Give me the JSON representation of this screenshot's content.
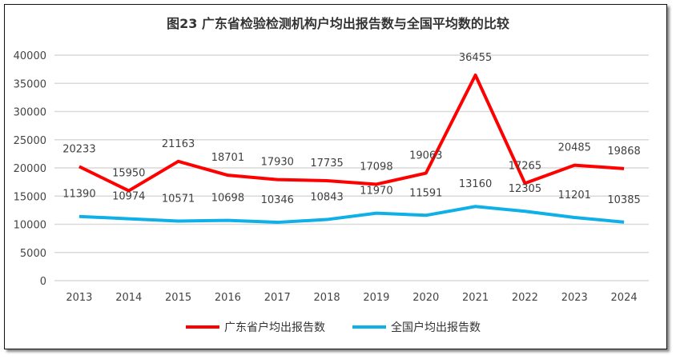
{
  "chart_data": {
    "type": "line",
    "title": "图23  广东省检验检测机构户均出报告数与全国平均数的比较",
    "categories": [
      "2013",
      "2014",
      "2015",
      "2016",
      "2017",
      "2018",
      "2019",
      "2020",
      "2021",
      "2022",
      "2023",
      "2024"
    ],
    "series": [
      {
        "name": "广东省户均出报告数",
        "color": "#FF0000",
        "values": [
          20233,
          15950,
          21163,
          18701,
          17930,
          17735,
          17098,
          19063,
          36455,
          17265,
          20485,
          19868
        ]
      },
      {
        "name": "全国户均出报告数",
        "color": "#0FB0E8",
        "values": [
          11390,
          10974,
          10571,
          10698,
          10346,
          10843,
          11970,
          11591,
          13160,
          12305,
          11201,
          10385
        ]
      }
    ],
    "yticks": [
      0,
      5000,
      10000,
      15000,
      20000,
      25000,
      30000,
      35000,
      40000
    ],
    "ylim": [
      0,
      40000
    ],
    "grid": true,
    "legend": "bottom"
  }
}
